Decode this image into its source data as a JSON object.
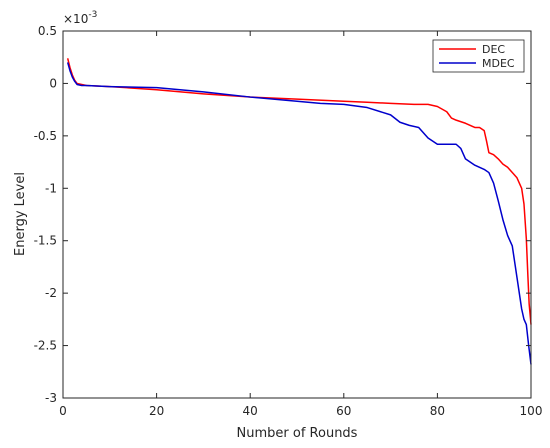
{
  "chart_data": {
    "type": "line",
    "title": "",
    "xlabel": "Number of Rounds",
    "ylabel": "Energy Level",
    "y_multiplier_label": "×10",
    "y_multiplier_exponent": "-3",
    "xlim": [
      0,
      100
    ],
    "ylim": [
      -3,
      0.5
    ],
    "x_ticks": [
      0,
      20,
      40,
      60,
      80,
      100
    ],
    "y_ticks": [
      -3,
      -2.5,
      -2,
      -1.5,
      -1,
      -0.5,
      0,
      0.5
    ],
    "x_tick_labels": [
      "0",
      "20",
      "40",
      "60",
      "80",
      "100"
    ],
    "y_tick_labels": [
      "-3",
      "-2.5",
      "-2",
      "-1.5",
      "-1",
      "-0.5",
      "0",
      "0.5"
    ],
    "grid": false,
    "legend_position": "top-right",
    "series": [
      {
        "name": "DEC",
        "color": "#ff0000",
        "x": [
          1,
          1.5,
          2,
          2.5,
          3,
          4,
          5,
          10,
          20,
          30,
          40,
          50,
          60,
          65,
          70,
          75,
          78,
          80,
          82,
          83,
          84,
          86,
          88,
          89,
          90,
          90.5,
          91,
          92,
          93,
          94,
          95,
          96,
          97,
          98,
          98.5,
          99,
          99.3,
          99.6,
          100
        ],
        "y": [
          0.24,
          0.15,
          0.08,
          0.03,
          0.0,
          -0.01,
          -0.02,
          -0.03,
          -0.06,
          -0.1,
          -0.13,
          -0.15,
          -0.17,
          -0.18,
          -0.19,
          -0.2,
          -0.2,
          -0.22,
          -0.27,
          -0.33,
          -0.35,
          -0.38,
          -0.42,
          -0.42,
          -0.45,
          -0.55,
          -0.66,
          -0.68,
          -0.72,
          -0.77,
          -0.8,
          -0.85,
          -0.9,
          -1.0,
          -1.15,
          -1.48,
          -1.8,
          -2.1,
          -2.3
        ]
      },
      {
        "name": "MDEC",
        "color": "#0000cc",
        "x": [
          1,
          1.5,
          2,
          2.5,
          3,
          4,
          5,
          10,
          20,
          30,
          40,
          50,
          55,
          60,
          65,
          70,
          72,
          74,
          76,
          78,
          80,
          82,
          84,
          85,
          86,
          88,
          90,
          91,
          92,
          93,
          94,
          95,
          96,
          97,
          98,
          98.5,
          99,
          99.5,
          100
        ],
        "y": [
          0.2,
          0.12,
          0.06,
          0.02,
          -0.01,
          -0.02,
          -0.02,
          -0.03,
          -0.04,
          -0.08,
          -0.13,
          -0.17,
          -0.19,
          -0.2,
          -0.23,
          -0.3,
          -0.37,
          -0.4,
          -0.42,
          -0.52,
          -0.58,
          -0.58,
          -0.58,
          -0.62,
          -0.72,
          -0.78,
          -0.82,
          -0.85,
          -0.95,
          -1.12,
          -1.3,
          -1.45,
          -1.55,
          -1.85,
          -2.15,
          -2.25,
          -2.3,
          -2.5,
          -2.68
        ]
      }
    ]
  }
}
